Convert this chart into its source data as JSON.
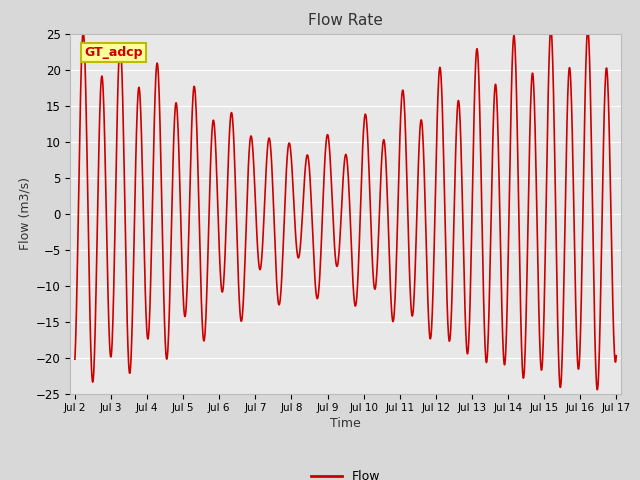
{
  "title": "Flow Rate",
  "xlabel": "Time",
  "ylabel": "Flow (m3/s)",
  "ylim": [
    -25,
    25
  ],
  "line_color": "#cc0000",
  "line_width": 1.2,
  "bg_color": "#e8e8e8",
  "fig_bg_color": "#d8d8d8",
  "legend_label": "Flow",
  "annotation_text": "GT_adcp",
  "annotation_bg": "#ffff99",
  "annotation_border": "#bbbb00",
  "yticks": [
    -25,
    -20,
    -15,
    -10,
    -5,
    0,
    5,
    10,
    15,
    20,
    25
  ],
  "xtick_labels": [
    "Jul 2",
    "Jul 3",
    "Jul 4",
    "Jul 5",
    "Jul 6",
    "Jul 7",
    "Jul 8",
    "Jul 9",
    "Jul 10",
    "Jul 11",
    "Jul 12",
    "Jul 13",
    "Jul 14",
    "Jul 15",
    "Jul 16",
    "Jul 17"
  ],
  "num_days": 15,
  "tidal_period_hours": 12.4,
  "start_day": 2
}
